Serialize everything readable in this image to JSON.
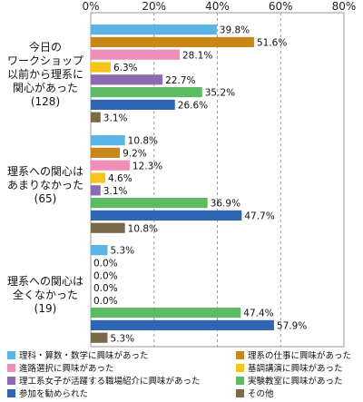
{
  "chart_data": {
    "type": "bar",
    "orientation": "horizontal",
    "xlim": [
      0,
      80
    ],
    "x_ticks": [
      "0%",
      "20%",
      "40%",
      "60%",
      "80%"
    ],
    "grid": "vertical dashed",
    "legend_position": "bottom",
    "categories": [
      [
        "今日の",
        "ワークショップ",
        "以前から理系に",
        "関心があった",
        "(128)"
      ],
      [
        "理系への関心は",
        "あまりなかった",
        "(65)"
      ],
      [
        "理系への関心は",
        "全くなかった",
        "(19)"
      ]
    ],
    "series": [
      {
        "name": "理科・算数・数学に興味があった",
        "color": "#5ab4e6",
        "values": [
          39.8,
          10.8,
          5.3
        ],
        "labels": [
          "39.8%",
          "10.8%",
          "5.3%"
        ]
      },
      {
        "name": "理系の仕事に興味があった",
        "color": "#c9871a",
        "values": [
          51.6,
          9.2,
          0.0
        ],
        "labels": [
          "51.6%",
          "9.2%",
          "0.0%"
        ]
      },
      {
        "name": "進路選択に興味があった",
        "color": "#ef8fb9",
        "values": [
          28.1,
          12.3,
          0.0
        ],
        "labels": [
          "28.1%",
          "12.3%",
          "0.0%"
        ]
      },
      {
        "name": "基調講演に興味があった",
        "color": "#f5c518",
        "values": [
          6.3,
          4.6,
          0.0
        ],
        "labels": [
          "6.3%",
          "4.6%",
          "0.0%"
        ]
      },
      {
        "name": "理工系女子が活躍する職場紹介に興味があった",
        "color": "#8b6bb0",
        "values": [
          22.7,
          3.1,
          0.0
        ],
        "labels": [
          "22.7%",
          "3.1%",
          "0.0%"
        ]
      },
      {
        "name": "実験教室に興味があった",
        "color": "#5dbb63",
        "values": [
          35.2,
          36.9,
          47.4
        ],
        "labels": [
          "35.2%",
          "36.9%",
          "47.4%"
        ]
      },
      {
        "name": "参加を勧められた",
        "color": "#2f66b3",
        "values": [
          26.6,
          47.7,
          57.9
        ],
        "labels": [
          "26.6%",
          "47.7%",
          "57.9%"
        ]
      },
      {
        "name": "その他",
        "color": "#7a6a4a",
        "values": [
          3.1,
          10.8,
          5.3
        ],
        "labels": [
          "3.1%",
          "10.8%",
          "5.3%"
        ]
      }
    ]
  }
}
